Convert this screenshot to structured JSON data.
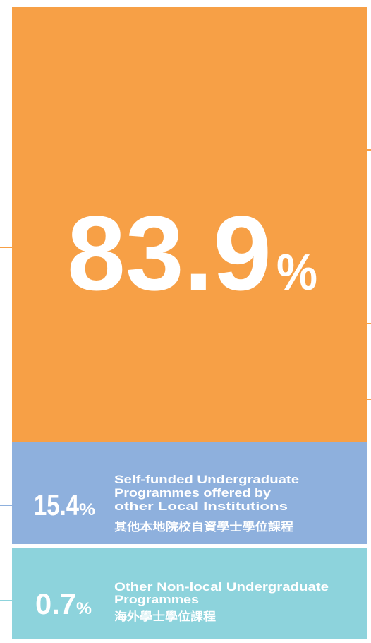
{
  "segments": [
    {
      "value": "83.9",
      "unit": "%"
    },
    {
      "value": "15.4",
      "unit": "%",
      "label": [
        "Self-funded Undergraduate",
        "Programmes offered by",
        "other Local Institutions",
        "其他本地院校自資學士學位課程"
      ]
    },
    {
      "value": "0.7",
      "unit": "%",
      "label": [
        "Other Non-local Undergraduate",
        "Programmes",
        "海外學士學位課程"
      ]
    }
  ]
}
